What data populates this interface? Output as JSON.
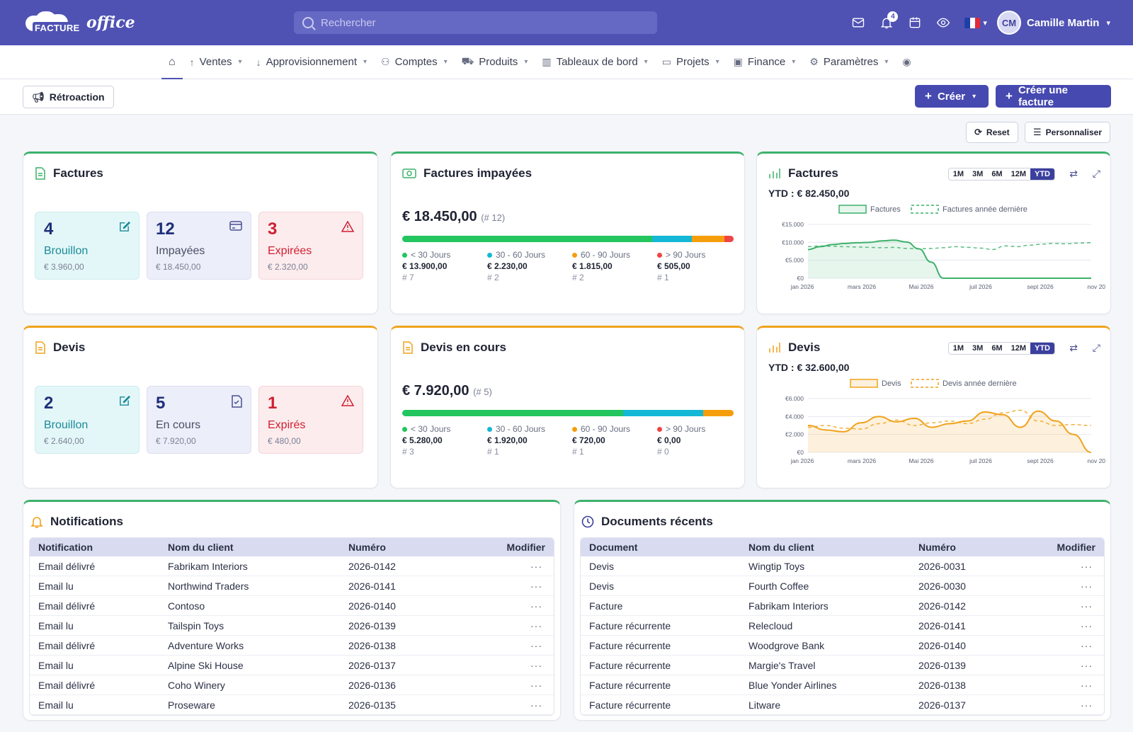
{
  "header": {
    "logo_word1": "FACTURE",
    "logo_word2": "office",
    "search_placeholder": "Rechercher",
    "notification_count": "4",
    "user_initials": "CM",
    "user_name": "Camille Martin"
  },
  "nav": {
    "items": [
      {
        "label": "Ventes"
      },
      {
        "label": "Approvisionnement"
      },
      {
        "label": "Comptes"
      },
      {
        "label": "Produits"
      },
      {
        "label": "Tableaux de bord"
      },
      {
        "label": "Projets"
      },
      {
        "label": "Finance"
      },
      {
        "label": "Paramètres"
      }
    ]
  },
  "actions": {
    "feedback": "Rétroaction",
    "create": "Créer",
    "create_invoice": "Créer une facture",
    "reset": "Reset",
    "customize": "Personnaliser"
  },
  "factures": {
    "title": "Factures",
    "stats": [
      {
        "num": "4",
        "label": "Brouillon",
        "amount": "€ 3.960,00"
      },
      {
        "num": "12",
        "label": "Impayées",
        "amount": "€ 18.450,00"
      },
      {
        "num": "3",
        "label": "Expirées",
        "amount": "€ 2.320,00"
      }
    ]
  },
  "impayees": {
    "title": "Factures impayées",
    "amount": "€ 18.450,00",
    "count": "(# 12)",
    "buckets": [
      {
        "label": "< 30 Jours",
        "amount": "€ 13.900,00",
        "count": "# 7",
        "value": 13900,
        "color": "#22c55e"
      },
      {
        "label": "30 - 60 Jours",
        "amount": "€ 2.230,00",
        "count": "# 2",
        "value": 2230,
        "color": "#14b8d6"
      },
      {
        "label": "60 - 90 Jours",
        "amount": "€ 1.815,00",
        "count": "# 2",
        "value": 1815,
        "color": "#f59e0b"
      },
      {
        "label": "> 90 Jours",
        "amount": "€ 505,00",
        "count": "# 1",
        "value": 505,
        "color": "#ef4444"
      }
    ]
  },
  "factures_chart": {
    "title": "Factures",
    "ytd": "YTD : € 82.450,00",
    "ranges": [
      "1M",
      "3M",
      "6M",
      "12M",
      "YTD"
    ],
    "selected_range": "YTD"
  },
  "devis": {
    "title": "Devis",
    "stats": [
      {
        "num": "2",
        "label": "Brouillon",
        "amount": "€ 2.640,00"
      },
      {
        "num": "5",
        "label": "En cours",
        "amount": "€ 7.920,00"
      },
      {
        "num": "1",
        "label": "Expirés",
        "amount": "€ 480,00"
      }
    ]
  },
  "devis_encours": {
    "title": "Devis en cours",
    "amount": "€ 7.920,00",
    "count": "(# 5)",
    "buckets": [
      {
        "label": "< 30 Jours",
        "amount": "€ 5.280,00",
        "count": "# 3",
        "value": 5280,
        "color": "#22c55e"
      },
      {
        "label": "30 - 60 Jours",
        "amount": "€ 1.920,00",
        "count": "# 1",
        "value": 1920,
        "color": "#14b8d6"
      },
      {
        "label": "60 - 90 Jours",
        "amount": "€ 720,00",
        "count": "# 1",
        "value": 720,
        "color": "#f59e0b"
      },
      {
        "label": "> 90 Jours",
        "amount": "€ 0,00",
        "count": "# 0",
        "value": 0,
        "color": "#ef4444"
      }
    ]
  },
  "devis_chart": {
    "title": "Devis",
    "ytd": "YTD : € 32.600,00",
    "ranges": [
      "1M",
      "3M",
      "6M",
      "12M",
      "YTD"
    ],
    "selected_range": "YTD"
  },
  "chart_data": [
    {
      "type": "area",
      "series": [
        {
          "name": "Factures",
          "color": "#3db16b",
          "values": [
            8000,
            8800,
            9400,
            9700,
            9900,
            10000,
            10400,
            10600,
            10100,
            8200,
            4500,
            0,
            0,
            0,
            0,
            0,
            0,
            0,
            0,
            0,
            0,
            0,
            0,
            0
          ]
        },
        {
          "name": "Factures année dernière",
          "color": "#3db16b",
          "values": [
            8800,
            9000,
            8900,
            8800,
            8700,
            8600,
            8500,
            8600,
            8300,
            8200,
            8300,
            8500,
            8800,
            8600,
            8400,
            8000,
            9000,
            8800,
            9200,
            9500,
            9700,
            9600,
            9800,
            9900
          ]
        },
        {
          "name": "Factures",
          "values": [
            8000,
            8800,
            9400,
            9700,
            9900,
            10000,
            10400,
            10600,
            10100,
            8200,
            4500,
            0
          ]
        },
        {
          "name": "Factures année dernière",
          "values": [
            8800,
            8900,
            8800,
            8600,
            8500,
            8300,
            8300,
            8800,
            8400,
            9000,
            9400,
            9800
          ]
        }
      ],
      "x_labels": [
        "jan 2026",
        "mars 2026",
        "Mai 2026",
        "juil 2026",
        "sept 2026",
        "nov 2026"
      ],
      "y_ticks": [
        "€0",
        "€5.000",
        "€10.000",
        "€15.000"
      ],
      "ylim": [
        0,
        15000
      ]
    },
    {
      "type": "area",
      "series": [
        {
          "name": "Devis",
          "values": [
            3000,
            2500,
            2300,
            3300,
            4000,
            3400,
            3800,
            2800,
            3200,
            3500,
            4500,
            4200,
            2800,
            4600,
            3500,
            2000,
            0
          ]
        },
        {
          "name": "Devis année dernière",
          "values": [
            2800,
            3000,
            2700,
            2600,
            3200,
            3600,
            3000,
            3300,
            3500,
            3200,
            3700,
            4400,
            4700,
            3500,
            3000,
            3100,
            3000
          ]
        }
      ],
      "x_labels": [
        "jan 2026",
        "mars 2026",
        "Mai 2026",
        "juil 2026",
        "sept 2026",
        "nov 2026"
      ],
      "y_ticks": [
        "€0",
        "€2.000",
        "€4.000",
        "€6.000"
      ],
      "ylim": [
        0,
        6000
      ]
    }
  ],
  "notifications": {
    "title": "Notifications",
    "columns": [
      "Notification",
      "Nom du client",
      "Numéro",
      "Modifier"
    ],
    "rows": [
      [
        "Email délivré",
        "Fabrikam Interiors",
        "2026-0142"
      ],
      [
        "Email lu",
        "Northwind Traders",
        "2026-0141"
      ],
      [
        "Email délivré",
        "Contoso",
        "2026-0140"
      ],
      [
        "Email lu",
        "Tailspin Toys",
        "2026-0139"
      ],
      [
        "Email délivré",
        "Adventure Works",
        "2026-0138"
      ],
      [
        "Email lu",
        "Alpine Ski House",
        "2026-0137"
      ],
      [
        "Email délivré",
        "Coho Winery",
        "2026-0136"
      ],
      [
        "Email lu",
        "Proseware",
        "2026-0135"
      ]
    ]
  },
  "documents": {
    "title": "Documents récents",
    "columns": [
      "Document",
      "Nom du client",
      "Numéro",
      "Modifier"
    ],
    "rows": [
      [
        "Devis",
        "Wingtip Toys",
        "2026-0031"
      ],
      [
        "Devis",
        "Fourth Coffee",
        "2026-0030"
      ],
      [
        "Facture",
        "Fabrikam Interiors",
        "2026-0142"
      ],
      [
        "Facture récurrente",
        "Relecloud",
        "2026-0141"
      ],
      [
        "Facture récurrente",
        "Woodgrove Bank",
        "2026-0140"
      ],
      [
        "Facture récurrente",
        "Margie's Travel",
        "2026-0139"
      ],
      [
        "Facture récurrente",
        "Blue Yonder Airlines",
        "2026-0138"
      ],
      [
        "Facture récurrente",
        "Litware",
        "2026-0137"
      ]
    ]
  },
  "colors": {
    "brand": "#4f52b3",
    "green": "#3db16b",
    "orange": "#f0a21c"
  }
}
